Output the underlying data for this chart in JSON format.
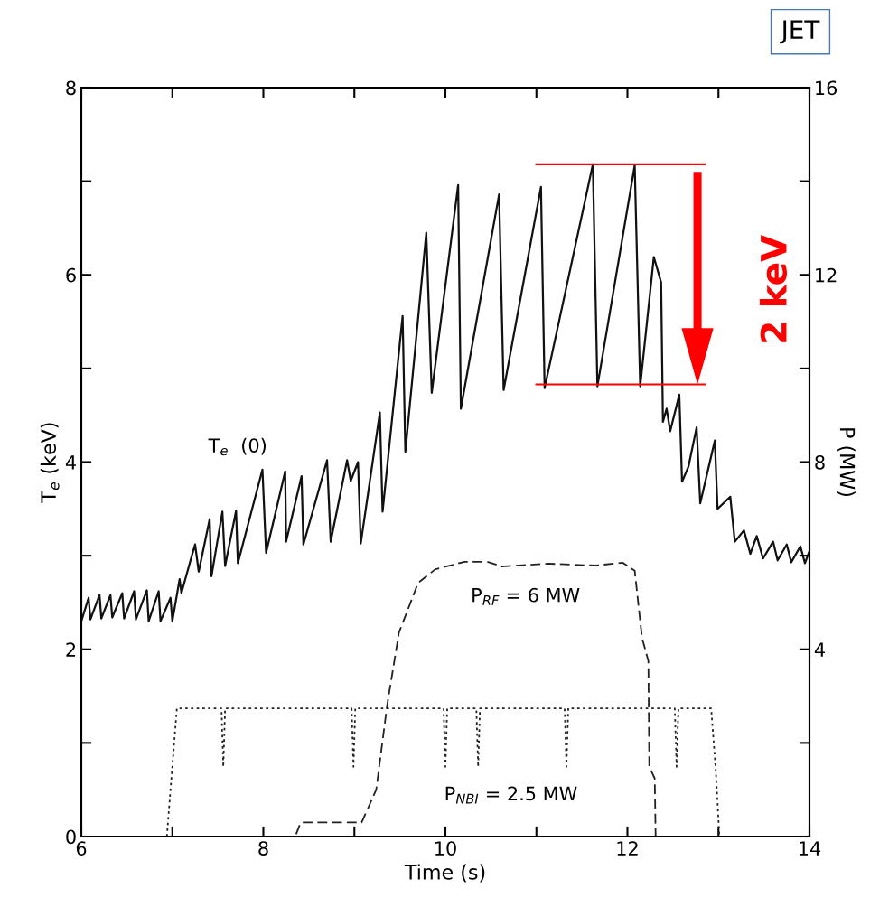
{
  "chart_data": {
    "type": "line",
    "xlabel": "Time (s)",
    "ylabel": "T$_{e}$ (keV)",
    "y2label": "P (MW)",
    "xlim": [
      6,
      14
    ],
    "xticks": [
      6,
      {
        "value": 7,
        "label": null
      },
      8,
      {
        "value": 9,
        "label": null
      },
      10,
      {
        "value": 11,
        "label": null
      },
      12,
      {
        "value": 13,
        "label": null
      },
      14
    ],
    "ylim": [
      0,
      8
    ],
    "yticks": [
      0,
      {
        "value": 1,
        "label": null
      },
      2,
      {
        "value": 3,
        "label": null
      },
      4,
      {
        "value": 5,
        "label": null
      },
      6,
      {
        "value": 7,
        "label": null
      },
      8
    ],
    "y2lim": [
      0,
      16
    ],
    "y2ticks": [
      {
        "value": 0,
        "label": null
      },
      {
        "value": 2,
        "label": null
      },
      4,
      {
        "value": 6,
        "label": null
      },
      8,
      {
        "value": 10,
        "label": null
      },
      12,
      {
        "value": 14,
        "label": null
      },
      16
    ],
    "grid": false,
    "series": [
      {
        "color": "#111111",
        "line_style": "solid",
        "x": [
          6.0,
          6.08,
          6.1,
          6.2,
          6.22,
          6.32,
          6.34,
          6.45,
          6.47,
          6.58,
          6.6,
          6.72,
          6.74,
          6.85,
          6.87,
          6.98,
          7.0,
          7.08,
          7.1,
          7.2,
          7.25,
          7.29,
          7.41,
          7.43,
          7.55,
          7.58,
          7.7,
          7.72,
          7.99,
          8.03,
          8.24,
          8.25,
          8.42,
          8.44,
          8.7,
          8.74,
          8.92,
          8.96,
          9.04,
          9.07,
          9.28,
          9.31,
          9.53,
          9.56,
          9.79,
          9.85,
          10.14,
          10.17,
          10.59,
          10.64,
          11.05,
          11.09,
          11.62,
          11.67,
          12.08,
          12.14,
          12.29,
          12.37,
          12.39,
          12.43,
          12.47,
          12.57,
          12.6,
          12.67,
          12.76,
          12.8,
          12.96,
          12.99,
          13.13,
          13.18,
          13.28,
          13.35,
          13.42,
          13.49,
          13.6,
          13.65,
          13.75,
          13.8,
          13.9,
          13.95,
          14.0
        ],
        "values": [
          2.3,
          2.55,
          2.32,
          2.58,
          2.33,
          2.58,
          2.34,
          2.6,
          2.33,
          2.62,
          2.32,
          2.63,
          2.3,
          2.62,
          2.3,
          2.55,
          2.3,
          2.75,
          2.6,
          2.95,
          3.12,
          2.83,
          3.39,
          2.78,
          3.47,
          2.89,
          3.48,
          2.92,
          3.92,
          3.03,
          3.9,
          3.15,
          3.85,
          3.12,
          4.02,
          3.15,
          4.02,
          3.8,
          4.0,
          3.13,
          4.53,
          3.47,
          5.56,
          4.11,
          6.45,
          4.74,
          6.96,
          4.57,
          6.86,
          4.77,
          6.94,
          4.79,
          7.18,
          4.81,
          7.17,
          4.81,
          6.19,
          5.92,
          4.43,
          4.57,
          4.33,
          4.72,
          3.79,
          3.95,
          4.37,
          3.56,
          4.23,
          3.5,
          3.63,
          3.15,
          3.27,
          3.02,
          3.21,
          2.97,
          3.15,
          2.95,
          3.12,
          2.93,
          3.1,
          2.92,
          3.05
        ]
      },
      {
        "color": "#222222",
        "line_style": "dashed",
        "axis": "y2",
        "x": [
          8.36,
          8.41,
          9.08,
          9.24,
          9.36,
          9.49,
          9.59,
          9.7,
          9.89,
          10.21,
          10.46,
          10.62,
          11.13,
          11.64,
          11.95,
          12.08,
          12.16,
          12.23,
          12.24,
          12.3,
          12.31
        ],
        "values": [
          0.05,
          0.3,
          0.3,
          1.0,
          2.8,
          4.36,
          4.86,
          5.42,
          5.71,
          5.87,
          5.87,
          5.77,
          5.83,
          5.79,
          5.85,
          5.68,
          4.25,
          3.75,
          1.49,
          1.24,
          0
        ]
      },
      {
        "color": "#222222",
        "line_style": "dotted",
        "axis": "y2",
        "x": [
          6.94,
          7.05,
          7.54,
          7.56,
          7.58,
          8.97,
          8.99,
          9.01,
          9.98,
          10.0,
          10.02,
          10.34,
          10.36,
          10.38,
          11.31,
          11.33,
          11.35,
          12.52,
          12.54,
          12.56,
          12.92,
          12.97,
          13.01
        ],
        "values": [
          0,
          2.74,
          2.74,
          1.49,
          2.74,
          2.74,
          1.49,
          2.74,
          2.74,
          1.49,
          2.74,
          2.74,
          1.49,
          2.74,
          2.74,
          1.49,
          2.74,
          2.74,
          1.49,
          2.74,
          2.74,
          1.43,
          0
        ]
      },
      {
        "color": "#ff0000",
        "line_style": "solid",
        "x": [
          11.0,
          12.85
        ],
        "values": [
          7.18,
          7.18
        ]
      },
      {
        "color": "#ff0000",
        "line_style": "solid",
        "x": [
          11.0,
          12.85
        ],
        "values": [
          4.83,
          4.83
        ]
      }
    ],
    "annotations": [
      "T$_{e}$  (0)",
      "P$_{RF}$ = 6 MW",
      "P$_{NBI}$ = 2.5 MW",
      "2 keV",
      "JET"
    ]
  }
}
